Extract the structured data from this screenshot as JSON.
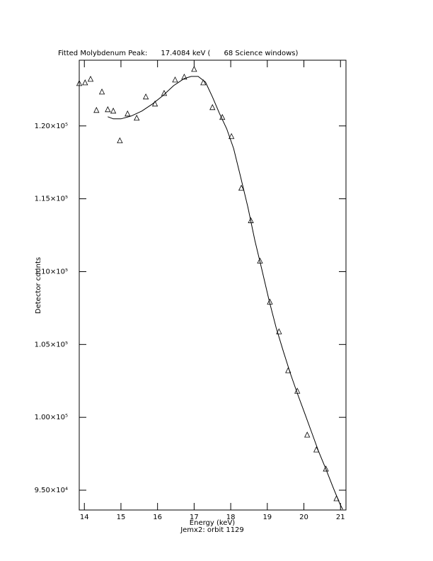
{
  "chart_data": {
    "type": "scatter",
    "title": "Fitted Molybdenum Peak:      17.4084 keV (      68 Science windows)",
    "xlabel": "Energy (keV)",
    "subtitle": "Jemx2: orbit 1129",
    "ylabel": "Detector counts",
    "xlim": [
      13.86,
      21.15
    ],
    "ylim": [
      93640,
      124510
    ],
    "xticks": [
      14,
      15,
      16,
      17,
      18,
      19,
      20,
      21
    ],
    "yticks": [
      {
        "value": 95000,
        "label": "9.50×10⁴"
      },
      {
        "value": 100000,
        "label": "1.00×10⁵"
      },
      {
        "value": 105000,
        "label": "1.05×10⁵"
      },
      {
        "value": 110000,
        "label": "1.10×10⁵"
      },
      {
        "value": 115000,
        "label": "1.15×10⁵"
      },
      {
        "value": 120000,
        "label": "1.20×10⁵"
      }
    ],
    "series": [
      {
        "color": "#000000",
        "marker": "triangle",
        "x": [
          13.86,
          14.02,
          14.17,
          14.33,
          14.48,
          14.64,
          14.79,
          14.97,
          15.18,
          15.43,
          15.68,
          15.93,
          16.18,
          16.48,
          16.73,
          17.0,
          17.25,
          17.5,
          17.77,
          18.02,
          18.29,
          18.55,
          18.8,
          19.07,
          19.32,
          19.57,
          19.82,
          20.09,
          20.34,
          20.6,
          20.89
        ],
        "values": [
          122913,
          122960,
          123204,
          121068,
          122330,
          121117,
          121019,
          118981,
          120825,
          120534,
          121990,
          121505,
          122233,
          123155,
          123350,
          123883,
          122961,
          121262,
          120583,
          119272,
          115728,
          113495,
          110728,
          107913,
          105874,
          103204,
          101796,
          98786,
          97767,
          96456,
          94417
        ]
      },
      {
        "color": "#000000",
        "marker": "none",
        "x": [
          14.64,
          14.79,
          15.0,
          15.28,
          15.57,
          15.86,
          16.15,
          16.44,
          16.73,
          16.92,
          17.11,
          17.31,
          17.5,
          17.69,
          17.89,
          18.08,
          18.27,
          18.47,
          18.66,
          18.86,
          19.05,
          19.24,
          19.44,
          19.63,
          19.82,
          20.02,
          20.21,
          20.4,
          20.6,
          20.79,
          20.98,
          21.06
        ],
        "values": [
          120631,
          120485,
          120485,
          120680,
          121019,
          121505,
          122087,
          122767,
          123252,
          123398,
          123398,
          123010,
          121990,
          120874,
          119806,
          118447,
          116505,
          114417,
          112136,
          110049,
          108010,
          106165,
          104515,
          103010,
          101650,
          100291,
          98981,
          97670,
          96456,
          95243,
          94078,
          93690
        ]
      }
    ]
  }
}
